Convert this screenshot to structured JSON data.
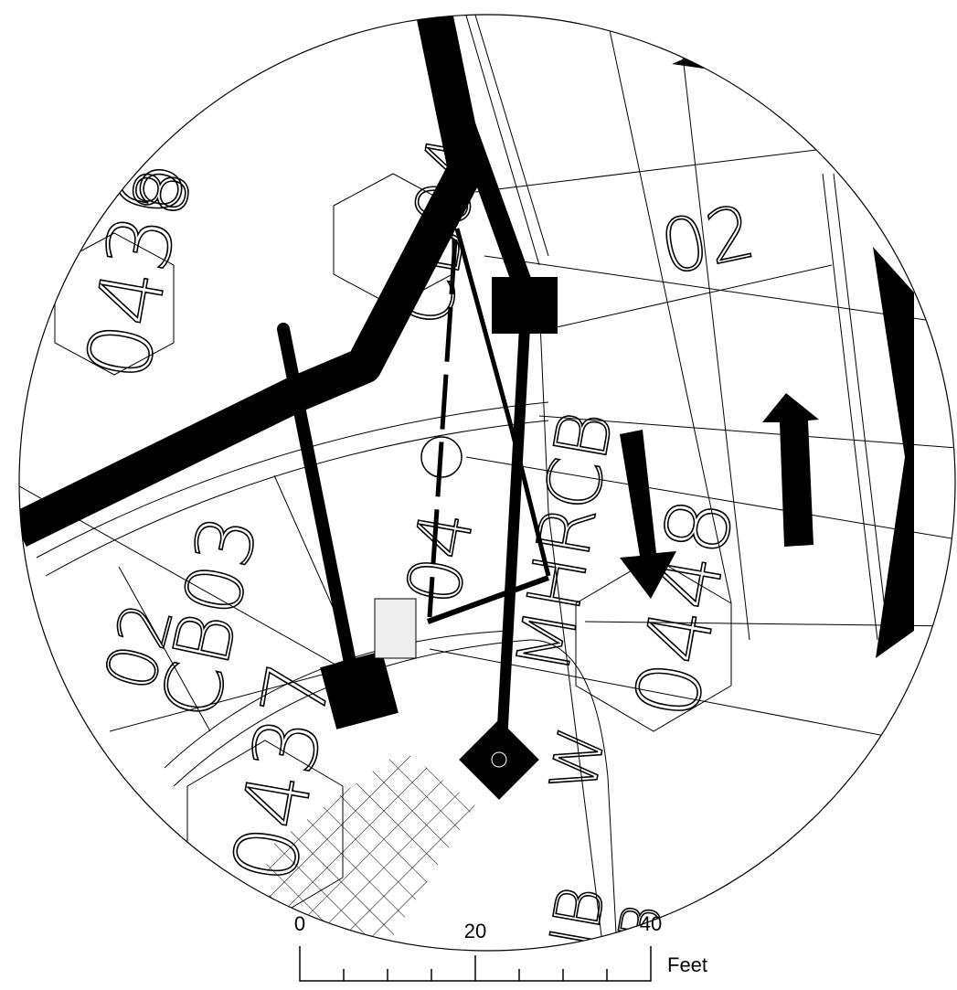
{
  "map_labels": [
    "0436",
    "8",
    "02",
    "0437",
    "0448",
    "CB03",
    "CB04",
    "MHRCB",
    "W",
    "JB",
    "JB",
    "02",
    "04"
  ],
  "scale_bar": {
    "labels": [
      "0",
      "20",
      "40"
    ],
    "unit": "Feet"
  }
}
